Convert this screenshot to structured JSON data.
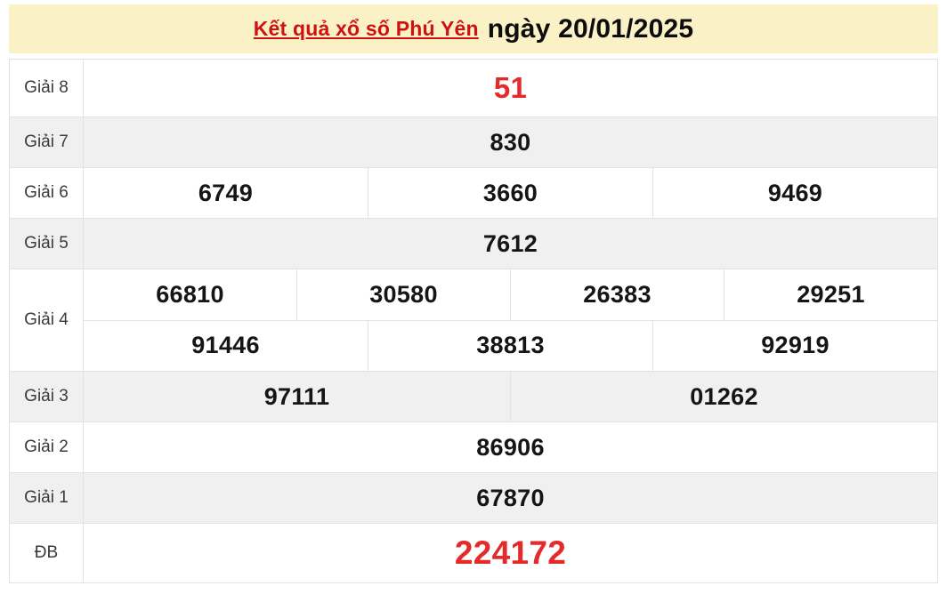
{
  "header": {
    "title_link": "Kết quả xổ số Phú Yên",
    "title_date": "ngày 20/01/2025"
  },
  "colors": {
    "banner_bg": "#FAF1C6",
    "title_red": "#CE1212",
    "number_red": "#E42B2B",
    "alt_row_bg": "#F0F0F0",
    "border": "#E2E2E2"
  },
  "results": {
    "rows": [
      {
        "label": "Giải 8",
        "numbers": [
          "51"
        ],
        "highlight": true
      },
      {
        "label": "Giải 7",
        "numbers": [
          "830"
        ],
        "highlight": false
      },
      {
        "label": "Giải 6",
        "numbers": [
          "6749",
          "3660",
          "9469"
        ],
        "highlight": false
      },
      {
        "label": "Giải 5",
        "numbers": [
          "7612"
        ],
        "highlight": false
      },
      {
        "label": "Giải 4",
        "lines": [
          [
            "66810",
            "30580",
            "26383",
            "29251"
          ],
          [
            "91446",
            "38813",
            "92919"
          ]
        ],
        "highlight": false
      },
      {
        "label": "Giải 3",
        "numbers": [
          "97111",
          "01262"
        ],
        "highlight": false
      },
      {
        "label": "Giải 2",
        "numbers": [
          "86906"
        ],
        "highlight": false
      },
      {
        "label": "Giải 1",
        "numbers": [
          "67870"
        ],
        "highlight": false
      },
      {
        "label": "ĐB",
        "numbers": [
          "224172"
        ],
        "highlight": true
      }
    ]
  }
}
